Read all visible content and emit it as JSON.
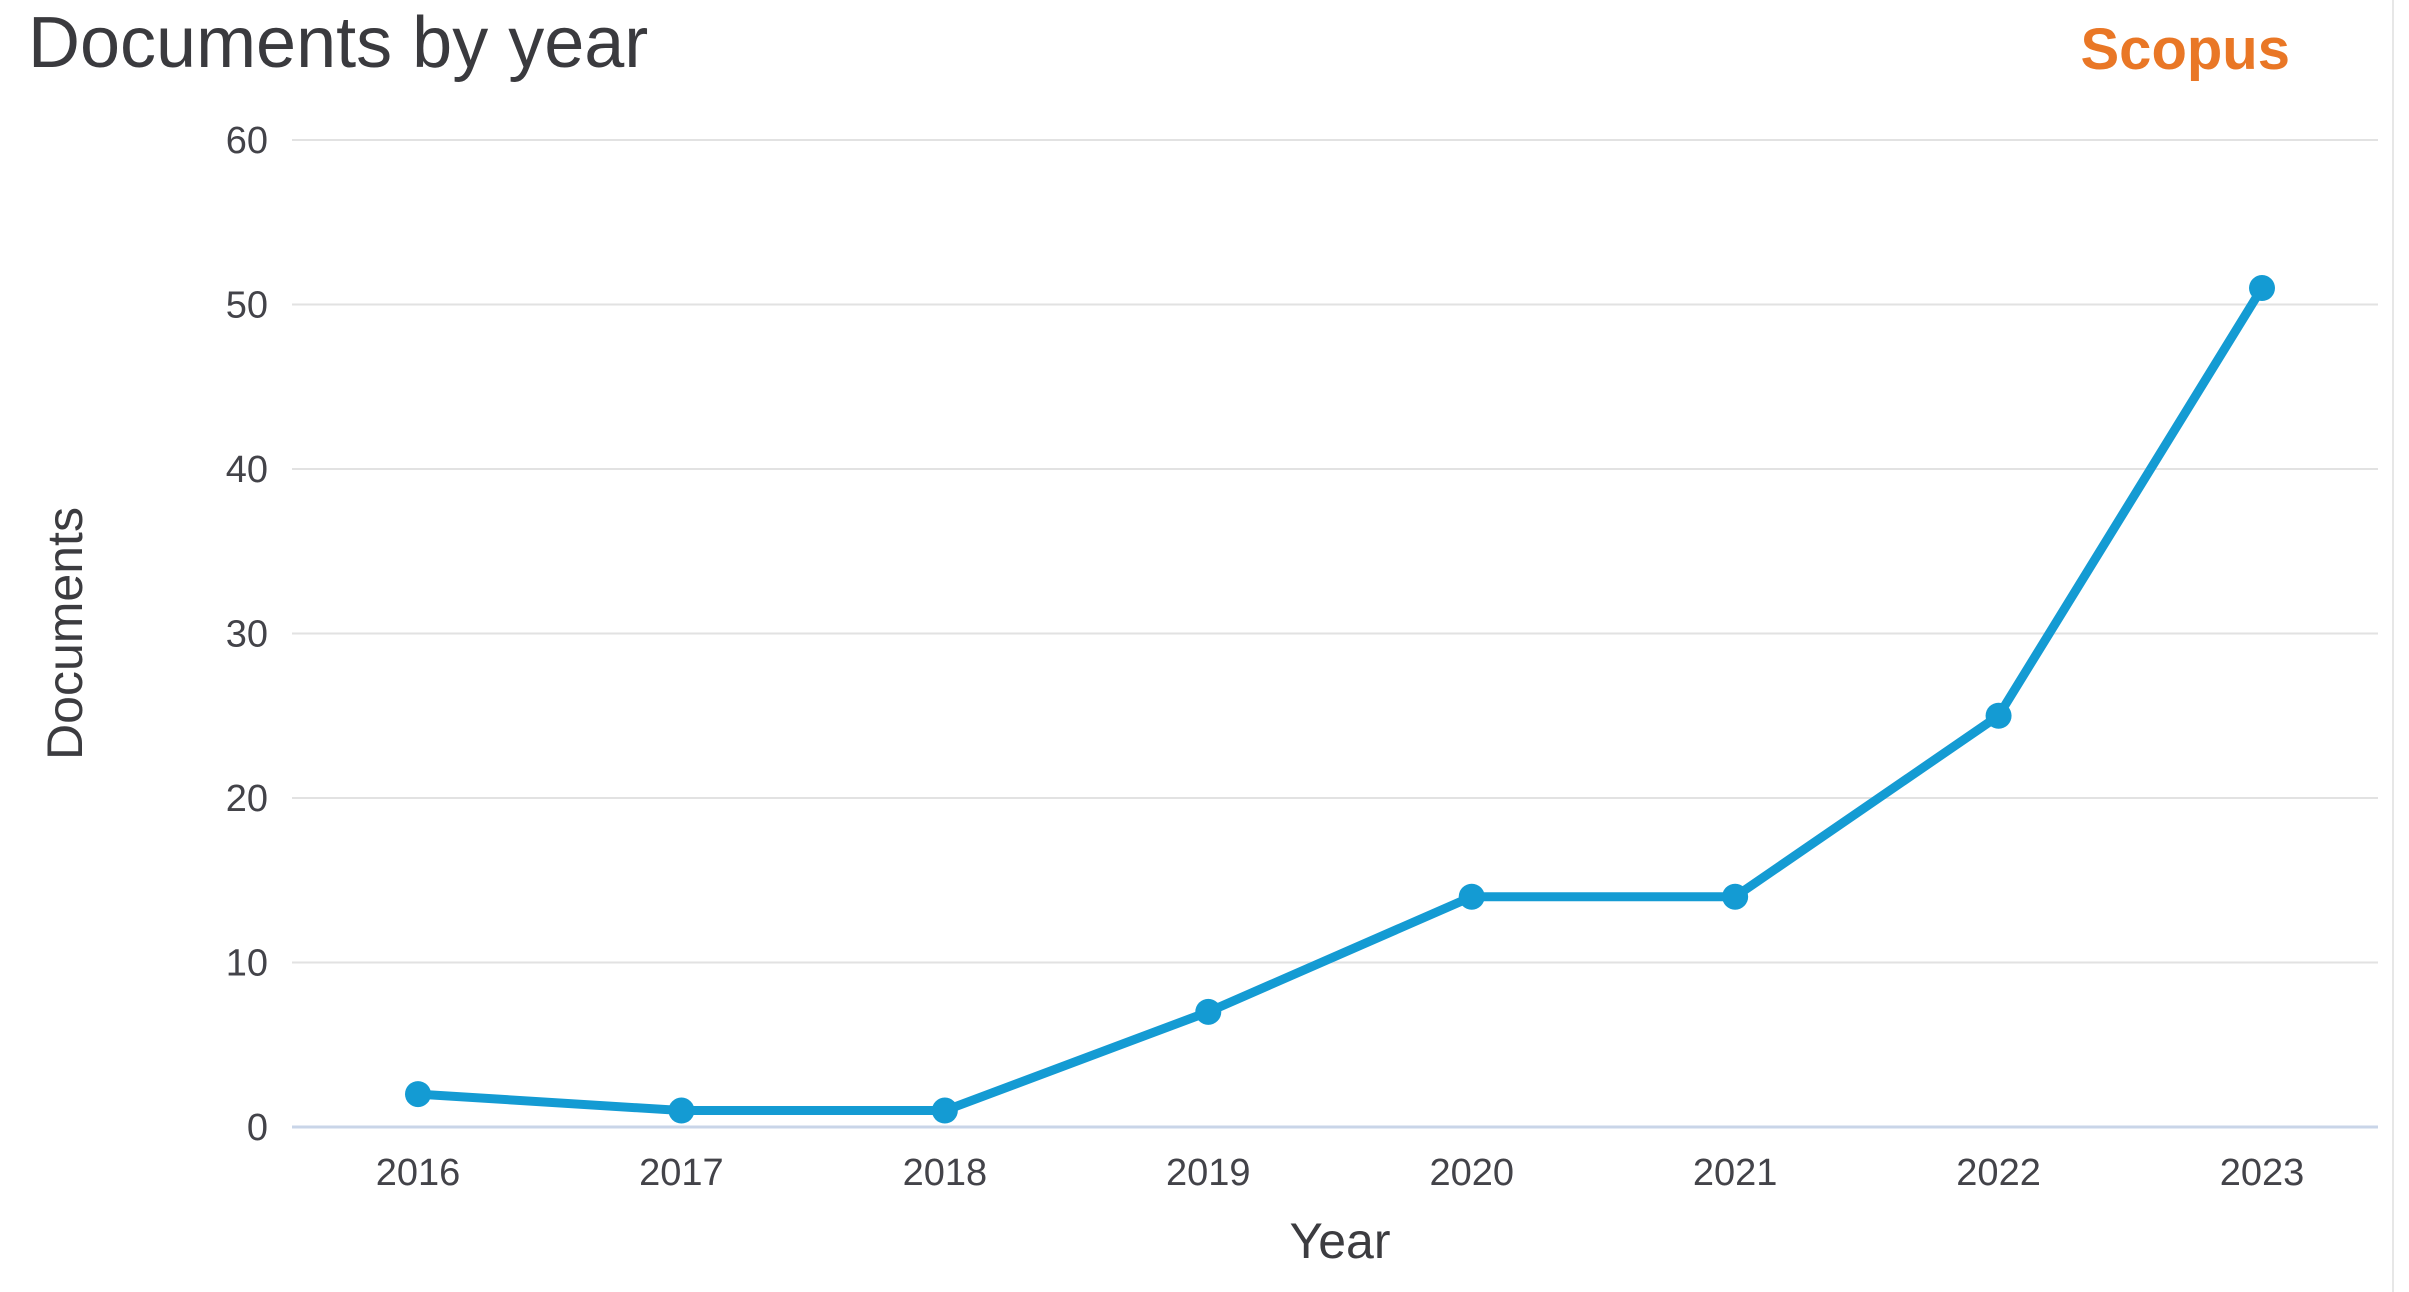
{
  "header": {
    "title": "Documents by year",
    "brand": "Scopus"
  },
  "colors": {
    "line": "#149bd3",
    "marker": "#149bd3",
    "grid": "#e2e2e2",
    "axis_zero_line": "#c9d5e8",
    "tick_text": "#434349",
    "axis_title_text": "#3c3c40",
    "title_text": "#3a3a3e",
    "brand_orange": "#e97726",
    "background": "#ffffff"
  },
  "chart_data": {
    "type": "line",
    "title": "Documents by year",
    "xlabel": "Year",
    "ylabel": "Documents",
    "categories": [
      "2016",
      "2017",
      "2018",
      "2019",
      "2020",
      "2021",
      "2022",
      "2023"
    ],
    "series": [
      {
        "name": "Documents",
        "values": [
          2,
          1,
          1,
          7,
          14,
          14,
          25,
          51
        ]
      }
    ],
    "ylim": [
      0,
      60
    ],
    "yticks": [
      0,
      10,
      20,
      30,
      40,
      50,
      60
    ],
    "grid": "horizontal-only",
    "legend_position": "none",
    "marker": "circle",
    "source_brand": "Scopus"
  }
}
